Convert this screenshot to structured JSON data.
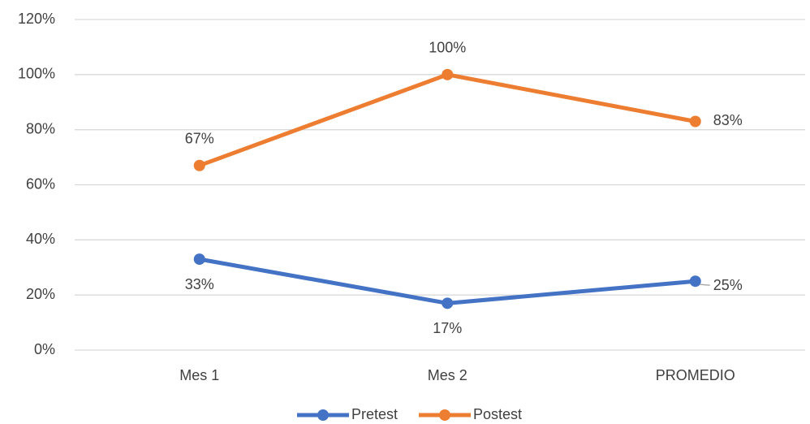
{
  "chart_data": {
    "type": "line",
    "categories": [
      "Mes 1",
      "Mes 2",
      "PROMEDIO"
    ],
    "series": [
      {
        "name": "Pretest",
        "color": "#4472c4",
        "values": [
          33,
          17,
          25
        ],
        "value_labels": [
          "33%",
          "17%",
          "25%"
        ]
      },
      {
        "name": "Postest",
        "color": "#ed7d31",
        "values": [
          67,
          100,
          83
        ],
        "value_labels": [
          "67%",
          "100%",
          "83%"
        ]
      }
    ],
    "ylim": [
      0,
      120
    ],
    "yticks": [
      {
        "value": 0,
        "label": "0%"
      },
      {
        "value": 20,
        "label": "20%"
      },
      {
        "value": 40,
        "label": "40%"
      },
      {
        "value": 60,
        "label": "60%"
      },
      {
        "value": 80,
        "label": "80%"
      },
      {
        "value": 100,
        "label": "100%"
      },
      {
        "value": 120,
        "label": "120%"
      }
    ],
    "grid": true,
    "legend": "bottom"
  }
}
